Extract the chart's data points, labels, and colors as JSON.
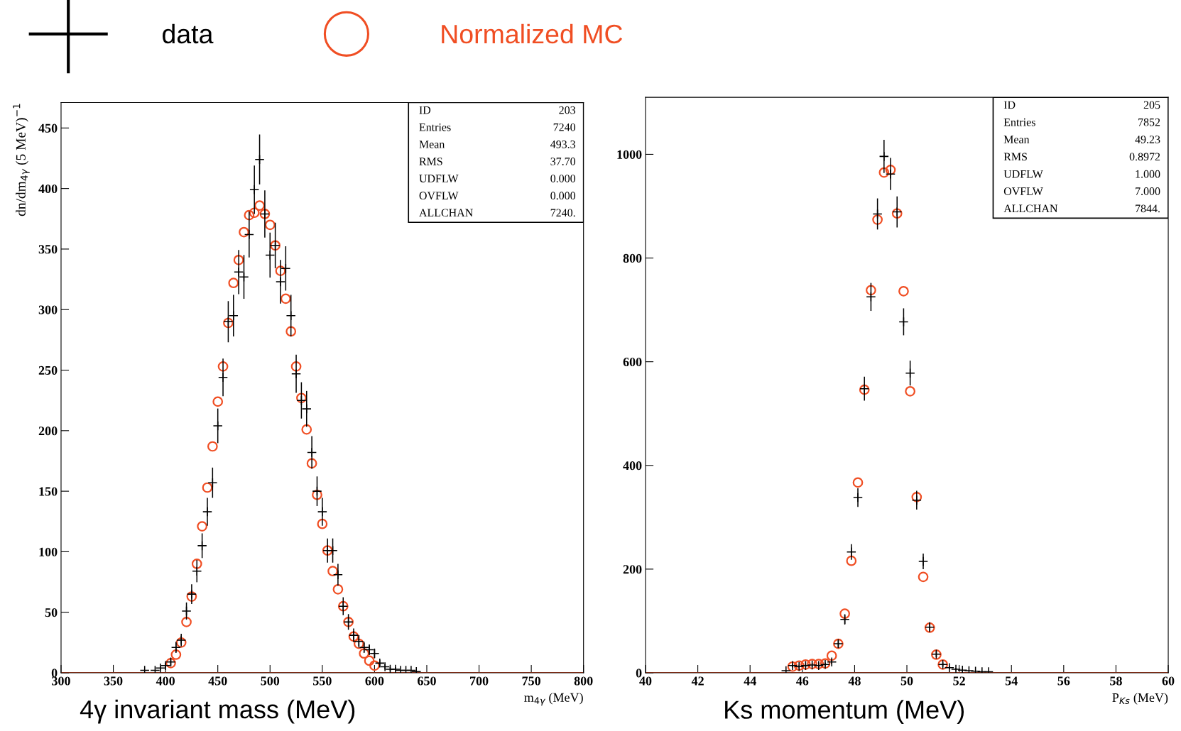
{
  "chart_data": [
    {
      "type": "scatter",
      "title": "4γ invariant mass (MeV)",
      "xlabel": "m$_{4γ}$ (MeV)",
      "ylabel": "dn/dm$_{4γ}$ (5 MeV)$^{−1}$",
      "xlim": [
        300,
        800
      ],
      "xticks": [
        300,
        350,
        400,
        450,
        500,
        550,
        600,
        650,
        700,
        750,
        800
      ],
      "ylim": [
        0,
        471
      ],
      "yticks": [
        0,
        50,
        100,
        150,
        200,
        250,
        300,
        350,
        400,
        450
      ],
      "legend": "top",
      "series": [
        {
          "name": "data",
          "color": "#000000",
          "marker": "cross",
          "x": [
            380,
            390,
            395,
            400,
            405,
            410,
            415,
            420,
            425,
            430,
            435,
            440,
            445,
            450,
            455,
            460,
            465,
            470,
            475,
            480,
            485,
            490,
            495,
            500,
            505,
            510,
            515,
            520,
            525,
            530,
            535,
            540,
            545,
            550,
            555,
            560,
            565,
            570,
            575,
            580,
            585,
            590,
            595,
            600,
            605,
            610,
            615,
            620,
            625,
            630,
            635,
            640
          ],
          "values": [
            2,
            2,
            4,
            6,
            9,
            21,
            27,
            51,
            65,
            84,
            105,
            133,
            157,
            204,
            244,
            290,
            295,
            331,
            327,
            362,
            399,
            424,
            379,
            345,
            353,
            323,
            334,
            295,
            247,
            225,
            218,
            182,
            150,
            133,
            101,
            101,
            81,
            55,
            42,
            31,
            26,
            21,
            19,
            16,
            8,
            5,
            3,
            3,
            2,
            2,
            2,
            1
          ],
          "errors": [
            null,
            null,
            2,
            2.4,
            3,
            4.6,
            5.2,
            7.1,
            8.1,
            9.2,
            10.2,
            11.5,
            12.5,
            14.3,
            15.6,
            17,
            17.2,
            18.2,
            18.1,
            19,
            20,
            20.6,
            19.5,
            18.6,
            18.8,
            18,
            18.3,
            17.2,
            15.7,
            15,
            14.8,
            13.5,
            12.2,
            11.5,
            10,
            10,
            9,
            7.4,
            6.5,
            5.6,
            5.1,
            4.6,
            4.4,
            4,
            2.8,
            2.2,
            1.7,
            1.7,
            null,
            null,
            null,
            null
          ]
        },
        {
          "name": "Normalized MC",
          "color": "#f04e23",
          "marker": "circle",
          "x": [
            405,
            410,
            415,
            420,
            425,
            430,
            435,
            440,
            445,
            450,
            455,
            460,
            465,
            470,
            475,
            480,
            485,
            490,
            495,
            500,
            505,
            510,
            515,
            520,
            525,
            530,
            535,
            540,
            545,
            550,
            555,
            560,
            565,
            570,
            575,
            580,
            585,
            590,
            595,
            600
          ],
          "values": [
            8,
            15,
            25,
            42,
            63,
            90,
            121,
            153,
            187,
            224,
            253,
            289,
            322,
            341,
            364,
            378,
            380,
            386,
            379,
            370,
            353,
            332,
            309,
            282,
            253,
            227,
            201,
            173,
            147,
            123,
            101,
            84,
            69,
            55,
            42,
            30,
            24,
            16,
            10,
            6
          ]
        }
      ],
      "ref_lines": [
        {
          "axis": "y",
          "value": 0,
          "color": "#f04e23"
        }
      ],
      "annotations": [
        "ID 203",
        "Entries 7240",
        "Mean 493.3",
        "RMS 37.70",
        "UDFLW 0.000",
        "OVFLW 0.000",
        "ALLCHAN 7240."
      ]
    },
    {
      "type": "scatter",
      "title": "Ks momentum (MeV)",
      "xlabel": "P$_{Ks}$ (MeV)",
      "xlim": [
        40,
        60
      ],
      "xticks": [
        40,
        42,
        44,
        46,
        48,
        50,
        52,
        54,
        56,
        58,
        60
      ],
      "ylim": [
        0,
        1110
      ],
      "yticks": [
        0,
        200,
        400,
        600,
        800,
        1000
      ],
      "series": [
        {
          "color": "#000000",
          "marker": "cross",
          "x": [
            45.375,
            45.625,
            45.875,
            46.125,
            46.375,
            46.625,
            46.875,
            47.125,
            47.375,
            47.625,
            47.875,
            48.125,
            48.375,
            48.625,
            48.875,
            49.125,
            49.375,
            49.625,
            49.875,
            50.125,
            50.375,
            50.625,
            50.875,
            51.125,
            51.375,
            51.625,
            51.875,
            52.125,
            52.375,
            52.625,
            52.875,
            53.125
          ],
          "values": [
            4,
            14,
            12,
            14,
            15,
            14,
            16,
            21,
            56,
            103,
            233,
            338,
            548,
            725,
            885,
            996,
            962,
            889,
            677,
            578,
            333,
            215,
            88,
            36,
            16,
            10,
            7,
            5,
            4,
            3,
            2,
            2
          ],
          "errors": [
            null,
            3.7,
            3.5,
            3.7,
            3.9,
            3.7,
            4,
            4.6,
            7.5,
            10,
            15,
            18,
            23,
            27,
            30,
            32,
            31,
            30,
            26,
            24,
            18,
            15,
            9.4,
            6,
            4,
            3.2,
            2.6,
            2.2,
            null,
            null,
            null,
            null
          ]
        },
        {
          "color": "#f04e23",
          "marker": "circle",
          "x": [
            45.625,
            45.875,
            46.125,
            46.375,
            46.625,
            46.875,
            47.125,
            47.375,
            47.625,
            47.875,
            48.125,
            48.375,
            48.625,
            48.875,
            49.125,
            49.375,
            49.625,
            49.875,
            50.125,
            50.375,
            50.625,
            50.875,
            51.125,
            51.375
          ],
          "values": [
            12,
            14,
            16,
            17,
            17,
            18,
            33,
            56,
            114,
            216,
            367,
            546,
            738,
            874,
            965,
            970,
            886,
            736,
            543,
            339,
            185,
            87,
            35,
            16
          ]
        }
      ],
      "ref_lines": [
        {
          "axis": "y",
          "value": 0,
          "color": "#f04e23"
        }
      ],
      "annotations": [
        "ID 205",
        "Entries 7852",
        "Mean 49.23",
        "RMS 0.8972",
        "UDFLW 1.000",
        "OVFLW 7.000",
        "ALLCHAN 7844."
      ]
    }
  ]
}
